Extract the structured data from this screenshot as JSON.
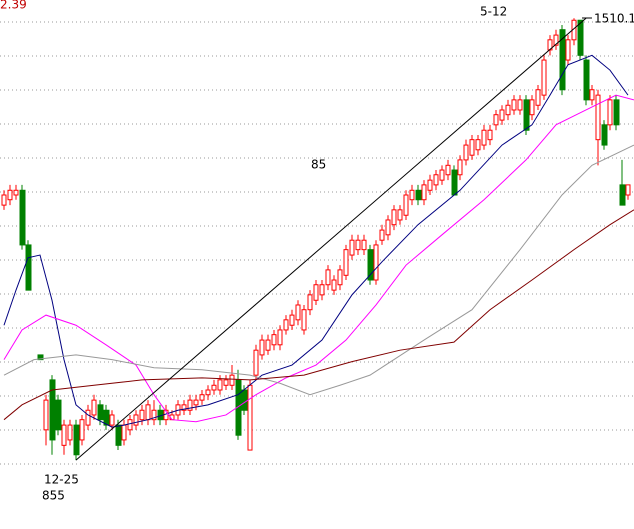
{
  "chart_data": {
    "type": "candlestick",
    "ylim": [
      753,
      1537
    ],
    "up_color": "#ff0000",
    "down_color": "#008000",
    "open": [
      1233,
      1241,
      1248,
      1255,
      1174,
      null,
      1011,
      900,
      974,
      944,
      877,
      885,
      907,
      885,
      907,
      922,
      937,
      929,
      907,
      907,
      885,
      900,
      907,
      915,
      915,
      915,
      929,
      915,
      915,
      922,
      929,
      929,
      937,
      944,
      952,
      959,
      959,
      966,
      966,
      974,
      959,
      870,
      981,
      1011,
      1018,
      1026,
      1026,
      1048,
      1055,
      1063,
      1048,
      1078,
      1092,
      1100,
      1115,
      1107,
      1115,
      1129,
      1159,
      1167,
      1167,
      1167,
      1122,
      1181,
      1189,
      1204,
      1211,
      1218,
      1241,
      1255,
      1241,
      1255,
      1263,
      1270,
      1278,
      1285,
      1278,
      1300,
      1307,
      1315,
      1322,
      1330,
      1352,
      1359,
      1367,
      1374,
      1374,
      1389,
      1367,
      1381,
      1396,
      1463,
      1470,
      1493,
      1448,
      1478,
      1507,
      1448,
      1389,
      1330,
      1352,
      1352,
      1389,
      1263,
      1248
    ],
    "high": [
      1255,
      1263,
      1263,
      1263,
      1181,
      null,
      1011,
      952,
      981,
      952,
      915,
      915,
      915,
      922,
      937,
      952,
      944,
      937,
      929,
      915,
      915,
      922,
      929,
      937,
      944,
      944,
      937,
      937,
      929,
      944,
      944,
      952,
      952,
      959,
      966,
      974,
      981,
      981,
      996,
      989,
      966,
      974,
      1026,
      1041,
      1041,
      1048,
      1055,
      1070,
      1078,
      1092,
      1085,
      1107,
      1122,
      1122,
      1144,
      1129,
      1144,
      1174,
      1189,
      1189,
      1189,
      1174,
      1181,
      1204,
      1218,
      1233,
      1233,
      1255,
      1263,
      1263,
      1270,
      1278,
      1285,
      1292,
      1300,
      1292,
      1307,
      1330,
      1337,
      1337,
      1352,
      1352,
      1374,
      1381,
      1389,
      1396,
      1396,
      1396,
      1396,
      1411,
      1455,
      1485,
      1493,
      1500,
      1485,
      1510,
      1507,
      1455,
      1411,
      1404,
      1359,
      1396,
      1396,
      1300,
      1263
    ],
    "low": [
      1226,
      1233,
      1241,
      1167,
      1107,
      null,
      1004,
      877,
      863,
      892,
      863,
      877,
      855,
      877,
      900,
      915,
      907,
      900,
      900,
      870,
      877,
      892,
      900,
      907,
      907,
      907,
      907,
      907,
      915,
      915,
      922,
      922,
      929,
      937,
      944,
      952,
      952,
      959,
      959,
      885,
      922,
      870,
      974,
      1004,
      1011,
      1018,
      1018,
      1041,
      1048,
      1055,
      1041,
      1070,
      1085,
      1092,
      1107,
      1100,
      1107,
      1122,
      1152,
      1159,
      1159,
      1115,
      1115,
      1174,
      1181,
      1196,
      1204,
      1211,
      1233,
      1233,
      1233,
      1248,
      1255,
      1263,
      1270,
      1248,
      1270,
      1292,
      1300,
      1307,
      1315,
      1322,
      1344,
      1352,
      1359,
      1367,
      1367,
      1337,
      1359,
      1374,
      1389,
      1455,
      1463,
      1396,
      1441,
      1470,
      1448,
      1381,
      1381,
      1292,
      1315,
      1344,
      1344,
      1233,
      1241
    ],
    "close": [
      1248,
      1255,
      1255,
      1174,
      1107,
      null,
      1004,
      944,
      885,
      900,
      907,
      907,
      863,
      915,
      929,
      944,
      915,
      907,
      922,
      877,
      907,
      915,
      922,
      929,
      937,
      929,
      915,
      929,
      922,
      937,
      937,
      944,
      944,
      952,
      959,
      966,
      974,
      974,
      981,
      892,
      929,
      966,
      1018,
      1033,
      1033,
      1041,
      1048,
      1063,
      1070,
      1085,
      1078,
      1100,
      1115,
      1115,
      1137,
      1122,
      1137,
      1167,
      1181,
      1181,
      1181,
      1122,
      1174,
      1196,
      1211,
      1226,
      1226,
      1248,
      1255,
      1241,
      1263,
      1270,
      1278,
      1285,
      1292,
      1248,
      1300,
      1322,
      1330,
      1330,
      1344,
      1344,
      1367,
      1374,
      1381,
      1389,
      1389,
      1344,
      1389,
      1404,
      1448,
      1478,
      1485,
      1404,
      1478,
      1507,
      1455,
      1389,
      1404,
      1396,
      1322,
      1389,
      1352,
      1233,
      1263
    ],
    "averages": [
      {
        "color": "#000080",
        "x": [
          0,
          2,
          4,
          6,
          8,
          10,
          12,
          14,
          18,
          20,
          24,
          29,
          34,
          39,
          43,
          48,
          53,
          58,
          63,
          69,
          76,
          83,
          88,
          91,
          94,
          98,
          101,
          104
        ],
        "values": [
          1055,
          1107,
          1155,
          1159,
          1092,
          1004,
          937,
          922,
          904,
          907,
          915,
          929,
          937,
          952,
          981,
          996,
          1033,
          1100,
          1149,
          1204,
          1255,
          1322,
          1352,
          1396,
          1441,
          1455,
          1433,
          1396
        ]
      },
      {
        "color": "#ff00ff",
        "x": [
          0,
          3,
          7,
          12,
          17,
          22,
          25,
          28,
          32,
          37,
          42,
          47,
          52,
          57,
          62,
          67,
          73,
          80,
          87,
          92,
          97,
          102,
          105
        ],
        "values": [
          1004,
          1048,
          1070,
          1055,
          1026,
          996,
          952,
          915,
          912,
          922,
          952,
          977,
          996,
          1033,
          1085,
          1144,
          1189,
          1241,
          1300,
          1352,
          1374,
          1396,
          1389
        ]
      },
      {
        "color": "#999999",
        "x": [
          0,
          5,
          12,
          18,
          25,
          33,
          41,
          46,
          51,
          56,
          61,
          70,
          78,
          86,
          93,
          98,
          105
        ],
        "values": [
          981,
          1004,
          1011,
          1004,
          992,
          989,
          981,
          969,
          952,
          966,
          981,
          1033,
          1078,
          1167,
          1248,
          1292,
          1322
        ]
      },
      {
        "color": "#800000",
        "x": [
          0,
          3,
          8,
          15,
          23,
          33,
          41,
          50,
          58,
          66,
          75,
          81,
          88,
          95,
          101,
          105
        ],
        "values": [
          915,
          937,
          959,
          966,
          974,
          977,
          974,
          981,
          1001,
          1018,
          1030,
          1078,
          1122,
          1167,
          1204,
          1226
        ]
      }
    ],
    "trendline": {
      "color": "#000000",
      "x": [
        12,
        97
      ],
      "values": [
        855,
        1510
      ]
    },
    "annotations": [
      "2.39",
      "5-12",
      "1510.1",
      "85",
      "12-25",
      "855"
    ]
  }
}
